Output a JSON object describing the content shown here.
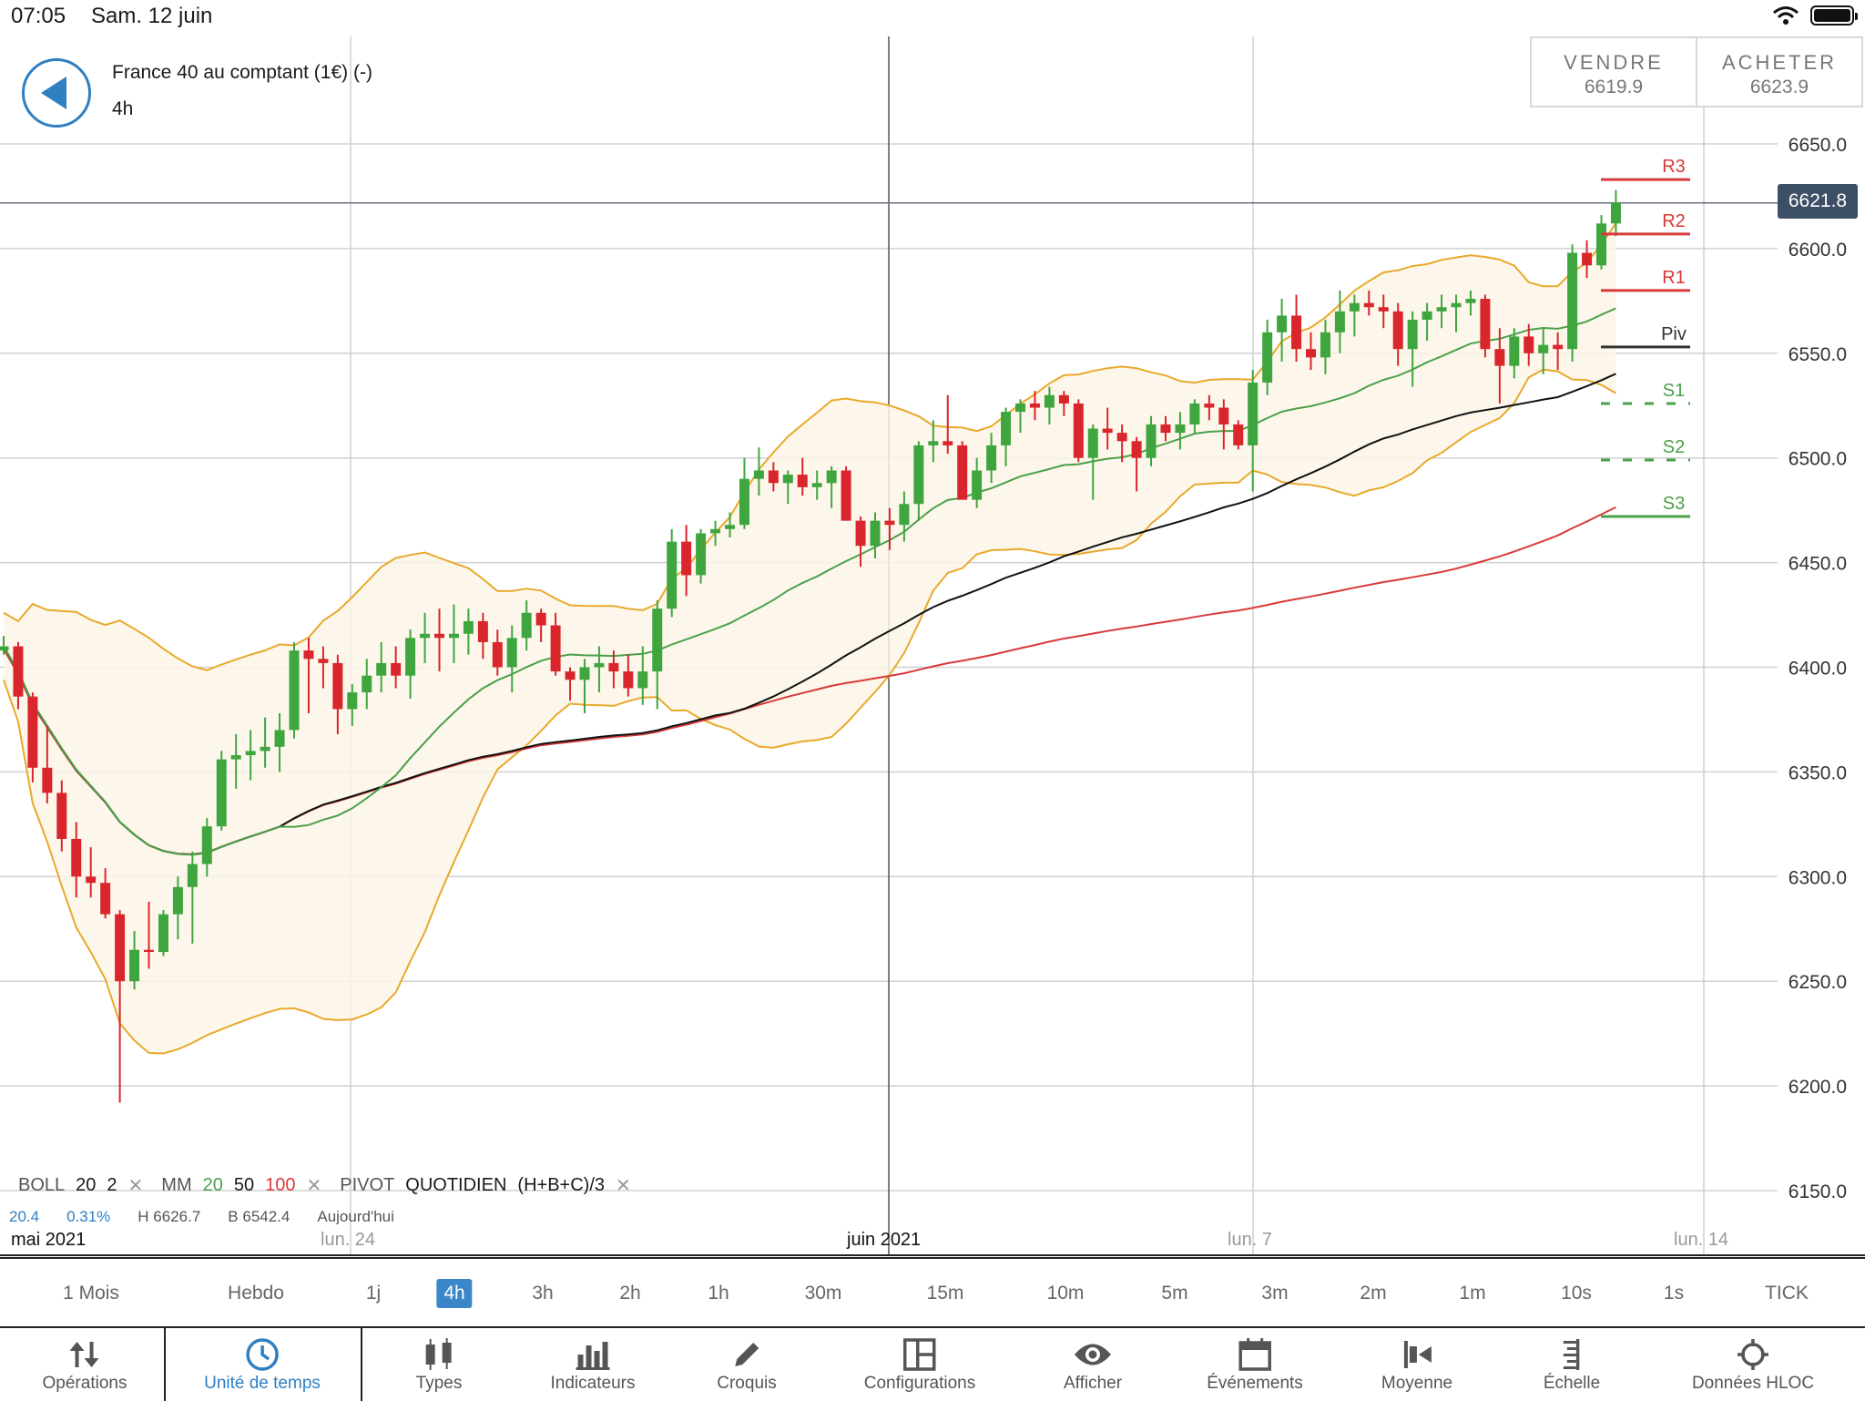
{
  "status": {
    "time": "07:05",
    "date": "Sam. 12 juin"
  },
  "instrument": {
    "name": "France 40 au comptant (1€) (-)",
    "timeframe": "4h"
  },
  "trade": {
    "sell_label": "VENDRE",
    "sell_price": "6619.9",
    "buy_label": "ACHETER",
    "buy_price": "6623.9"
  },
  "current_price": "6621.8",
  "colors": {
    "up": "#3fa63f",
    "down": "#d9262c",
    "boll": "#e8a92b",
    "mm20": "#4aa04a",
    "mm50": "#111111",
    "mm100": "#d83a3a",
    "accent": "#2f7fc1"
  },
  "legend": {
    "boll_label": "BOLL",
    "boll_p1": "20",
    "boll_p2": "2",
    "mm_label": "MM",
    "mm_p1": "20",
    "mm_p2": "50",
    "mm_p3": "100",
    "pivot_label": "PIVOT",
    "pivot_mode": "QUOTIDIEN",
    "pivot_formula": "(H+B+C)/3",
    "sub1": "20.4",
    "sub2": "0.31%",
    "sub3": "H 6626.7",
    "sub4": "B 6542.4",
    "sub5": "Aujourd'hui"
  },
  "dates": {
    "d1": "mai 2021",
    "d2": "lun. 24",
    "d3": "juin 2021",
    "d4": "lun. 7",
    "d5": "lun. 14"
  },
  "timeframes": [
    "1 Mois",
    "Hebdo",
    "1j",
    "4h",
    "3h",
    "2h",
    "1h",
    "30m",
    "15m",
    "10m",
    "5m",
    "3m",
    "2m",
    "1m",
    "10s",
    "1s",
    "TICK"
  ],
  "active_timeframe": "4h",
  "toolbar": {
    "operations": "Opérations",
    "unite": "Unité de temps",
    "types": "Types",
    "indicateurs": "Indicateurs",
    "croquis": "Croquis",
    "configurations": "Configurations",
    "afficher": "Afficher",
    "evenements": "Événements",
    "moyenne": "Moyenne",
    "echelle": "Échelle",
    "donnees": "Données HLOC"
  },
  "chart_data": {
    "type": "candlestick",
    "y_axis": {
      "min": 6150,
      "max": 6650,
      "step": 50,
      "ticks": [
        "6650.0",
        "6600.0",
        "6550.0",
        "6500.0",
        "6450.0",
        "6400.0",
        "6350.0",
        "6300.0",
        "6250.0",
        "6200.0",
        "6150.0"
      ]
    },
    "pivots": [
      {
        "label": "R3",
        "value": 6633,
        "color": "#d83a3a"
      },
      {
        "label": "R2",
        "value": 6607,
        "color": "#d83a3a"
      },
      {
        "label": "R1",
        "value": 6580,
        "color": "#d83a3a"
      },
      {
        "label": "Piv",
        "value": 6553,
        "color": "#333333"
      },
      {
        "label": "S1",
        "value": 6526,
        "color": "#4aa04a"
      },
      {
        "label": "S2",
        "value": 6499,
        "color": "#4aa04a"
      },
      {
        "label": "S3",
        "value": 6472,
        "color": "#4aa04a"
      }
    ],
    "candles": [
      [
        6408,
        6415,
        6406,
        6410
      ],
      [
        6410,
        6412,
        6380,
        6386
      ],
      [
        6386,
        6388,
        6345,
        6352
      ],
      [
        6352,
        6372,
        6335,
        6340
      ],
      [
        6340,
        6346,
        6312,
        6318
      ],
      [
        6318,
        6326,
        6290,
        6300
      ],
      [
        6300,
        6314,
        6290,
        6297
      ],
      [
        6297,
        6304,
        6280,
        6282
      ],
      [
        6282,
        6284,
        6192,
        6250
      ],
      [
        6250,
        6274,
        6246,
        6265
      ],
      [
        6265,
        6288,
        6256,
        6264
      ],
      [
        6264,
        6284,
        6262,
        6282
      ],
      [
        6282,
        6300,
        6270,
        6295
      ],
      [
        6295,
        6312,
        6268,
        6306
      ],
      [
        6306,
        6328,
        6300,
        6324
      ],
      [
        6324,
        6360,
        6322,
        6356
      ],
      [
        6356,
        6368,
        6342,
        6358
      ],
      [
        6358,
        6370,
        6346,
        6360
      ],
      [
        6360,
        6376,
        6352,
        6362
      ],
      [
        6362,
        6378,
        6350,
        6370
      ],
      [
        6370,
        6412,
        6366,
        6408
      ],
      [
        6408,
        6414,
        6378,
        6404
      ],
      [
        6404,
        6410,
        6390,
        6402
      ],
      [
        6402,
        6406,
        6368,
        6380
      ],
      [
        6380,
        6392,
        6372,
        6388
      ],
      [
        6388,
        6404,
        6380,
        6396
      ],
      [
        6396,
        6412,
        6388,
        6402
      ],
      [
        6402,
        6410,
        6390,
        6396
      ],
      [
        6396,
        6418,
        6385,
        6414
      ],
      [
        6414,
        6426,
        6402,
        6416
      ],
      [
        6416,
        6428,
        6398,
        6414
      ],
      [
        6414,
        6430,
        6402,
        6416
      ],
      [
        6416,
        6428,
        6406,
        6422
      ],
      [
        6422,
        6426,
        6404,
        6412
      ],
      [
        6412,
        6418,
        6396,
        6400
      ],
      [
        6400,
        6420,
        6388,
        6414
      ],
      [
        6414,
        6432,
        6408,
        6426
      ],
      [
        6426,
        6428,
        6412,
        6420
      ],
      [
        6420,
        6426,
        6396,
        6398
      ],
      [
        6398,
        6400,
        6384,
        6394
      ],
      [
        6394,
        6404,
        6378,
        6400
      ],
      [
        6400,
        6410,
        6388,
        6402
      ],
      [
        6402,
        6408,
        6390,
        6398
      ],
      [
        6398,
        6406,
        6386,
        6390
      ],
      [
        6390,
        6410,
        6382,
        6398
      ],
      [
        6398,
        6432,
        6380,
        6428
      ],
      [
        6428,
        6466,
        6424,
        6460
      ],
      [
        6460,
        6468,
        6434,
        6444
      ],
      [
        6444,
        6466,
        6440,
        6464
      ],
      [
        6464,
        6470,
        6458,
        6466
      ],
      [
        6466,
        6474,
        6462,
        6468
      ],
      [
        6468,
        6500,
        6466,
        6490
      ],
      [
        6490,
        6505,
        6482,
        6494
      ],
      [
        6494,
        6498,
        6484,
        6488
      ],
      [
        6488,
        6494,
        6478,
        6492
      ],
      [
        6492,
        6500,
        6482,
        6486
      ],
      [
        6486,
        6494,
        6480,
        6488
      ],
      [
        6488,
        6496,
        6476,
        6494
      ],
      [
        6494,
        6496,
        6470,
        6470
      ],
      [
        6470,
        6472,
        6448,
        6458
      ],
      [
        6458,
        6474,
        6452,
        6470
      ],
      [
        6470,
        6476,
        6456,
        6468
      ],
      [
        6468,
        6484,
        6460,
        6478
      ],
      [
        6478,
        6508,
        6470,
        6506
      ],
      [
        6506,
        6518,
        6498,
        6508
      ],
      [
        6508,
        6530,
        6502,
        6506
      ],
      [
        6506,
        6508,
        6484,
        6480
      ],
      [
        6480,
        6500,
        6476,
        6494
      ],
      [
        6494,
        6512,
        6488,
        6506
      ],
      [
        6506,
        6524,
        6496,
        6522
      ],
      [
        6522,
        6528,
        6512,
        6526
      ],
      [
        6526,
        6532,
        6518,
        6524
      ],
      [
        6524,
        6534,
        6516,
        6530
      ],
      [
        6530,
        6532,
        6520,
        6526
      ],
      [
        6526,
        6528,
        6498,
        6500
      ],
      [
        6500,
        6516,
        6480,
        6514
      ],
      [
        6514,
        6524,
        6504,
        6512
      ],
      [
        6512,
        6516,
        6498,
        6508
      ],
      [
        6508,
        6510,
        6484,
        6500
      ],
      [
        6500,
        6520,
        6496,
        6516
      ],
      [
        6516,
        6520,
        6508,
        6512
      ],
      [
        6512,
        6522,
        6504,
        6516
      ],
      [
        6516,
        6528,
        6512,
        6526
      ],
      [
        6526,
        6530,
        6518,
        6524
      ],
      [
        6524,
        6528,
        6504,
        6516
      ],
      [
        6516,
        6518,
        6504,
        6506
      ],
      [
        6506,
        6542,
        6484,
        6536
      ],
      [
        6536,
        6566,
        6530,
        6560
      ],
      [
        6560,
        6576,
        6546,
        6568
      ],
      [
        6568,
        6578,
        6546,
        6552
      ],
      [
        6552,
        6560,
        6542,
        6548
      ],
      [
        6548,
        6566,
        6540,
        6560
      ],
      [
        6560,
        6580,
        6550,
        6570
      ],
      [
        6570,
        6578,
        6558,
        6574
      ],
      [
        6574,
        6580,
        6568,
        6572
      ],
      [
        6572,
        6578,
        6562,
        6570
      ],
      [
        6570,
        6574,
        6544,
        6552
      ],
      [
        6552,
        6570,
        6534,
        6566
      ],
      [
        6566,
        6574,
        6556,
        6570
      ],
      [
        6570,
        6578,
        6562,
        6572
      ],
      [
        6572,
        6578,
        6560,
        6574
      ],
      [
        6574,
        6580,
        6568,
        6576
      ],
      [
        6576,
        6578,
        6548,
        6552
      ],
      [
        6552,
        6562,
        6526,
        6544
      ],
      [
        6544,
        6562,
        6538,
        6558
      ],
      [
        6558,
        6564,
        6544,
        6550
      ],
      [
        6550,
        6562,
        6540,
        6554
      ],
      [
        6554,
        6560,
        6542,
        6552
      ],
      [
        6552,
        6602,
        6546,
        6598
      ],
      [
        6598,
        6604,
        6586,
        6592
      ],
      [
        6592,
        6616,
        6590,
        6612
      ],
      [
        6612,
        6628,
        6606,
        6622
      ]
    ],
    "series": [
      {
        "name": "BOLL 20 2",
        "color": "#e8a92b"
      },
      {
        "name": "MM 20",
        "color": "#4aa04a"
      },
      {
        "name": "MM 50",
        "color": "#111111"
      },
      {
        "name": "MM 100",
        "color": "#d83a3a"
      }
    ]
  }
}
